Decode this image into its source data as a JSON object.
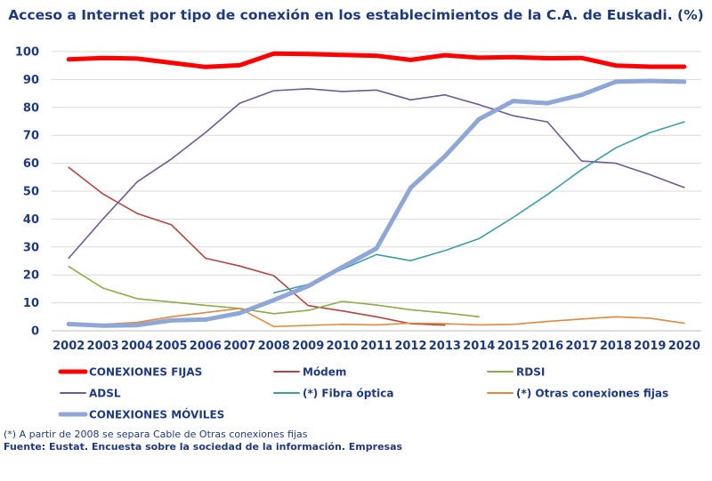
{
  "chart_data": {
    "type": "line",
    "title": "Acceso a Internet por tipo de conexión en los establecimientos de la C.A. de Euskadi. (%)",
    "x": [
      "2002",
      "2003",
      "2004",
      "2005",
      "2006",
      "2007",
      "2008",
      "2009",
      "2010",
      "2011",
      "2012",
      "2013",
      "2014",
      "2015",
      "2016",
      "2017",
      "2018",
      "2019",
      "2020"
    ],
    "ylim": [
      0,
      100
    ],
    "yticks": [
      "0",
      "10",
      "20",
      "30",
      "40",
      "50",
      "60",
      "70",
      "80",
      "90",
      "100"
    ],
    "grid": true,
    "series": [
      {
        "name": "CONEXIONES FIJAS",
        "color": "#ff0000",
        "width": 5,
        "values": [
          97.2,
          97.7,
          97.5,
          96.0,
          94.5,
          95.1,
          99.3,
          99.1,
          98.8,
          98.5,
          97.0,
          98.7,
          97.8,
          98.0,
          97.6,
          97.7,
          95.0,
          94.6,
          94.6
        ]
      },
      {
        "name": "Módem",
        "color": "#b0463f",
        "width": 1.6,
        "values": [
          58.5,
          49.0,
          42.0,
          38.0,
          26.0,
          23.2,
          19.7,
          9.0,
          7.1,
          5.0,
          2.5,
          2.0,
          null,
          null,
          null,
          null,
          null,
          null,
          null
        ]
      },
      {
        "name": "RDSI",
        "color": "#8aad45",
        "width": 1.6,
        "values": [
          23.0,
          15.3,
          11.5,
          10.3,
          9.1,
          8.0,
          6.1,
          7.3,
          10.5,
          9.2,
          7.5,
          6.4,
          5.0,
          null,
          null,
          null,
          null,
          null,
          null
        ]
      },
      {
        "name": "ADSL",
        "color": "#6f5a94",
        "width": 1.6,
        "values": [
          26.0,
          40.0,
          53.3,
          61.5,
          71.0,
          81.5,
          86.0,
          86.7,
          85.7,
          86.2,
          82.7,
          84.5,
          81.0,
          77.0,
          74.8,
          60.8,
          60.0,
          55.9,
          51.3
        ]
      },
      {
        "name": "(*) Fibra óptica",
        "color": "#3d9ea3",
        "width": 1.6,
        "values": [
          null,
          null,
          null,
          null,
          null,
          null,
          13.6,
          16.6,
          22.0,
          27.3,
          25.1,
          28.7,
          33.0,
          40.6,
          48.8,
          57.7,
          65.5,
          71.0,
          74.8
        ]
      },
      {
        "name": "(*) Otras conexiones fijas",
        "color": "#e0883d",
        "width": 1.6,
        "values": [
          2.0,
          2.3,
          3.0,
          5.0,
          6.5,
          8.0,
          1.5,
          1.9,
          2.3,
          2.1,
          2.7,
          2.5,
          2.1,
          2.3,
          3.3,
          4.2,
          5.0,
          4.5,
          2.7
        ]
      },
      {
        "name": "CONEXIONES MÓVILES",
        "color": "#8fa7d6",
        "width": 5,
        "values": [
          2.4,
          1.8,
          2.0,
          3.7,
          4.0,
          6.3,
          11.0,
          16.0,
          22.8,
          29.5,
          51.2,
          62.5,
          75.8,
          82.3,
          81.5,
          84.5,
          89.2,
          89.5,
          89.2
        ]
      }
    ]
  },
  "footer": {
    "note": "(*) A partir de 2008 se separa Cable de Otras conexiones fijas",
    "source": "Fuente: Eustat. Encuesta sobre la sociedad de la información. Empresas"
  }
}
